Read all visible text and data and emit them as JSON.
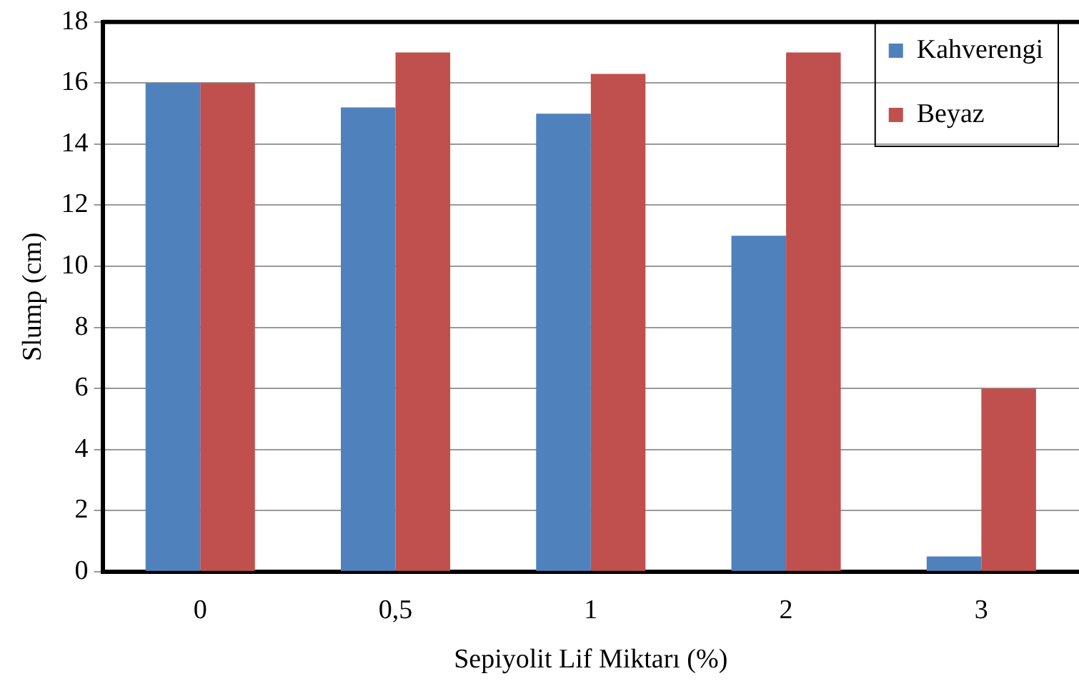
{
  "chart_data": {
    "type": "bar",
    "xlabel": "Sepiyolit Lif Miktarı (%)",
    "ylabel": "Slump (cm)",
    "categories": [
      "0",
      "0,5",
      "1",
      "2",
      "3"
    ],
    "series": [
      {
        "name": "Kahverengi",
        "color": "#4f81bd",
        "values": [
          16,
          15.2,
          15,
          11,
          0.5
        ]
      },
      {
        "name": "Beyaz",
        "color": "#c0504d",
        "values": [
          16,
          17,
          16.3,
          17,
          6
        ]
      }
    ],
    "ylim": [
      0,
      18
    ],
    "yticks": [
      0,
      2,
      4,
      6,
      8,
      10,
      12,
      14,
      16,
      18
    ],
    "grid": "y",
    "legend": "top right"
  }
}
